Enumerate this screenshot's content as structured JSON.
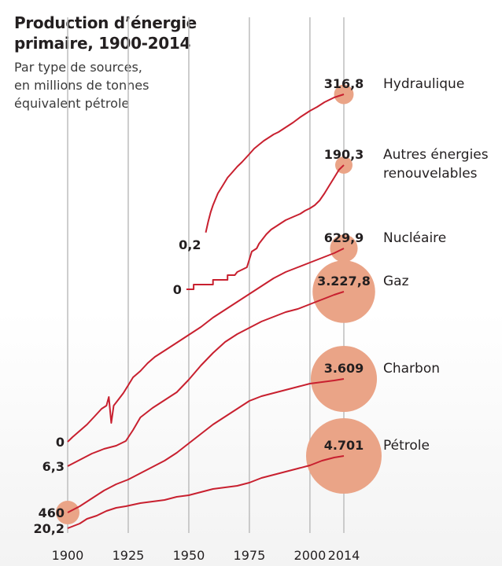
{
  "title_line1": "Production d’énergie",
  "title_line2": "primaire, 1900-2014",
  "subtitle_line1": "Par type de sources,",
  "subtitle_line2": "en millions de tonnes",
  "subtitle_line3": "équivalent pétrole",
  "colors": {
    "line": "#c8202f",
    "bubble": "#eaa487",
    "grid": "#bdbdbd",
    "text": "#231f20"
  },
  "chart_data": {
    "type": "line",
    "x_ticks": [
      1900,
      1925,
      1950,
      1975,
      2000,
      2014
    ],
    "series": [
      {
        "name": "Hydraulique",
        "start_year": 1957,
        "start_value": 0.2,
        "start_label": "0,2",
        "end_value": 316.8,
        "end_label": "316,8",
        "points": [
          [
            1957,
            0.2
          ],
          [
            1958,
            14
          ],
          [
            1959,
            26
          ],
          [
            1960,
            35
          ],
          [
            1962,
            50
          ],
          [
            1964,
            60
          ],
          [
            1966,
            70
          ],
          [
            1968,
            77
          ],
          [
            1970,
            84
          ],
          [
            1972,
            90
          ],
          [
            1975,
            100
          ],
          [
            1977,
            107
          ],
          [
            1979,
            112
          ],
          [
            1981,
            117
          ],
          [
            1983,
            121
          ],
          [
            1985,
            125
          ],
          [
            1987,
            128
          ],
          [
            1990,
            134
          ],
          [
            1993,
            140
          ],
          [
            1996,
            147
          ],
          [
            2000,
            155
          ],
          [
            2003,
            160
          ],
          [
            2006,
            166
          ],
          [
            2010,
            172
          ],
          [
            2012,
            174
          ],
          [
            2014,
            176
          ]
        ]
      },
      {
        "name": "Autres énergies renouvelables",
        "start_year": 1949,
        "start_value": 0,
        "start_label": "0",
        "end_value": 190.3,
        "end_label": "190,3",
        "points": [
          [
            1949,
            0
          ],
          [
            1952,
            0
          ],
          [
            1952,
            6
          ],
          [
            1960,
            6
          ],
          [
            1960,
            12
          ],
          [
            1966,
            12
          ],
          [
            1966,
            18
          ],
          [
            1969,
            18
          ],
          [
            1970,
            22
          ],
          [
            1972,
            25
          ],
          [
            1974,
            28
          ],
          [
            1976,
            48
          ],
          [
            1978,
            52
          ],
          [
            1979,
            58
          ],
          [
            1980,
            62
          ],
          [
            1982,
            70
          ],
          [
            1984,
            76
          ],
          [
            1986,
            80
          ],
          [
            1988,
            84
          ],
          [
            1990,
            88
          ],
          [
            1993,
            92
          ],
          [
            1996,
            96
          ],
          [
            1998,
            100
          ],
          [
            2000,
            103
          ],
          [
            2002,
            107
          ],
          [
            2004,
            113
          ],
          [
            2006,
            122
          ],
          [
            2008,
            132
          ],
          [
            2010,
            142
          ],
          [
            2012,
            152
          ],
          [
            2014,
            158
          ]
        ]
      },
      {
        "name": "Nucléaire",
        "start_year": 1900,
        "start_value": 0,
        "start_label": "0",
        "end_value": 629.9,
        "end_label": "629,9",
        "points": [
          [
            1900,
            -2
          ],
          [
            1902,
            4
          ],
          [
            1905,
            12
          ],
          [
            1908,
            20
          ],
          [
            1911,
            30
          ],
          [
            1914,
            40
          ],
          [
            1916,
            44
          ],
          [
            1917,
            55
          ],
          [
            1918,
            22
          ],
          [
            1919,
            44
          ],
          [
            1921,
            52
          ],
          [
            1923,
            60
          ],
          [
            1925,
            70
          ],
          [
            1927,
            80
          ],
          [
            1930,
            88
          ],
          [
            1933,
            98
          ],
          [
            1936,
            106
          ],
          [
            1940,
            114
          ],
          [
            1945,
            124
          ],
          [
            1950,
            134
          ],
          [
            1955,
            144
          ],
          [
            1960,
            156
          ],
          [
            1965,
            166
          ],
          [
            1970,
            176
          ],
          [
            1975,
            186
          ],
          [
            1980,
            196
          ],
          [
            1985,
            206
          ],
          [
            1990,
            214
          ],
          [
            1995,
            220
          ],
          [
            2000,
            226
          ],
          [
            2005,
            232
          ],
          [
            2010,
            238
          ],
          [
            2014,
            244
          ]
        ]
      },
      {
        "name": "Gaz",
        "start_year": 1900,
        "start_value": 6.3,
        "start_label": "6,3",
        "end_value": 3227.8,
        "end_label": "3.227,8",
        "points": [
          [
            1900,
            0
          ],
          [
            1905,
            8
          ],
          [
            1910,
            16
          ],
          [
            1915,
            22
          ],
          [
            1920,
            26
          ],
          [
            1924,
            32
          ],
          [
            1927,
            46
          ],
          [
            1930,
            62
          ],
          [
            1935,
            74
          ],
          [
            1940,
            84
          ],
          [
            1945,
            94
          ],
          [
            1950,
            110
          ],
          [
            1955,
            128
          ],
          [
            1960,
            144
          ],
          [
            1965,
            158
          ],
          [
            1970,
            168
          ],
          [
            1975,
            176
          ],
          [
            1980,
            184
          ],
          [
            1985,
            190
          ],
          [
            1990,
            196
          ],
          [
            1995,
            200
          ],
          [
            2000,
            206
          ],
          [
            2005,
            212
          ],
          [
            2010,
            218
          ],
          [
            2014,
            222
          ]
        ]
      },
      {
        "name": "Charbon",
        "start_year": 1900,
        "start_value": 460,
        "start_label": "460",
        "end_value": 3609,
        "end_label": "3.609",
        "points": [
          [
            1900,
            0
          ],
          [
            1905,
            8
          ],
          [
            1910,
            18
          ],
          [
            1915,
            28
          ],
          [
            1920,
            36
          ],
          [
            1925,
            42
          ],
          [
            1930,
            50
          ],
          [
            1935,
            58
          ],
          [
            1940,
            66
          ],
          [
            1945,
            76
          ],
          [
            1950,
            88
          ],
          [
            1955,
            100
          ],
          [
            1960,
            112
          ],
          [
            1965,
            122
          ],
          [
            1970,
            132
          ],
          [
            1975,
            142
          ],
          [
            1980,
            148
          ],
          [
            1985,
            152
          ],
          [
            1990,
            156
          ],
          [
            1995,
            160
          ],
          [
            2000,
            164
          ],
          [
            2005,
            166
          ],
          [
            2010,
            168
          ],
          [
            2014,
            170
          ]
        ]
      },
      {
        "name": "Pétrole",
        "start_year": 1900,
        "start_value": 20.2,
        "start_label": "20,2",
        "end_value": 4701,
        "end_label": "4.701",
        "points": [
          [
            1900,
            0
          ],
          [
            1905,
            6
          ],
          [
            1908,
            12
          ],
          [
            1912,
            16
          ],
          [
            1916,
            22
          ],
          [
            1920,
            26
          ],
          [
            1924,
            28
          ],
          [
            1930,
            32
          ],
          [
            1935,
            34
          ],
          [
            1940,
            36
          ],
          [
            1945,
            40
          ],
          [
            1950,
            42
          ],
          [
            1955,
            46
          ],
          [
            1960,
            50
          ],
          [
            1965,
            52
          ],
          [
            1970,
            54
          ],
          [
            1975,
            58
          ],
          [
            1980,
            64
          ],
          [
            1985,
            68
          ],
          [
            1990,
            72
          ],
          [
            1995,
            76
          ],
          [
            2000,
            80
          ],
          [
            2005,
            86
          ],
          [
            2010,
            90
          ],
          [
            2014,
            92
          ]
        ]
      }
    ]
  }
}
